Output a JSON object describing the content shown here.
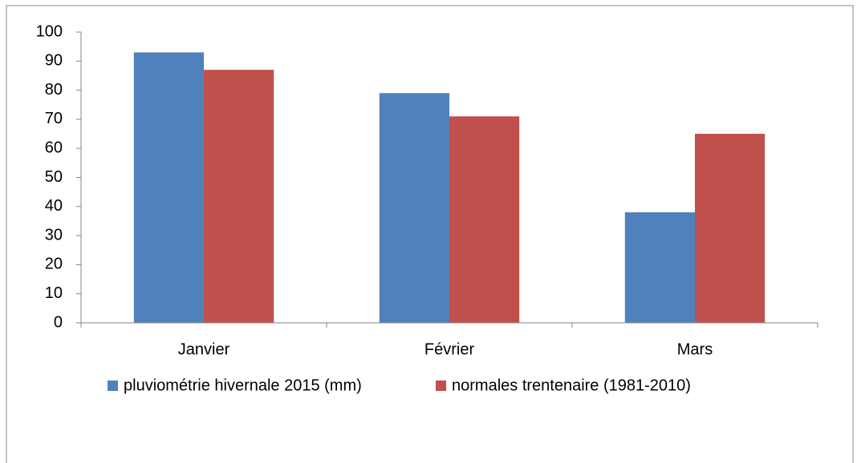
{
  "chart_data": {
    "type": "bar",
    "categories": [
      "Janvier",
      "Février",
      "Mars"
    ],
    "series": [
      {
        "name": "pluviométrie hivernale 2015 (mm)",
        "color": "#4f81bd",
        "values": [
          93,
          79,
          38
        ]
      },
      {
        "name": "normales trentenaire (1981-2010)",
        "color": "#c0504d",
        "values": [
          87,
          71,
          65
        ]
      }
    ],
    "ylim": [
      0,
      100
    ],
    "yticks": [
      0,
      10,
      20,
      30,
      40,
      50,
      60,
      70,
      80,
      90,
      100
    ],
    "grid": false,
    "legend": "bottom"
  }
}
